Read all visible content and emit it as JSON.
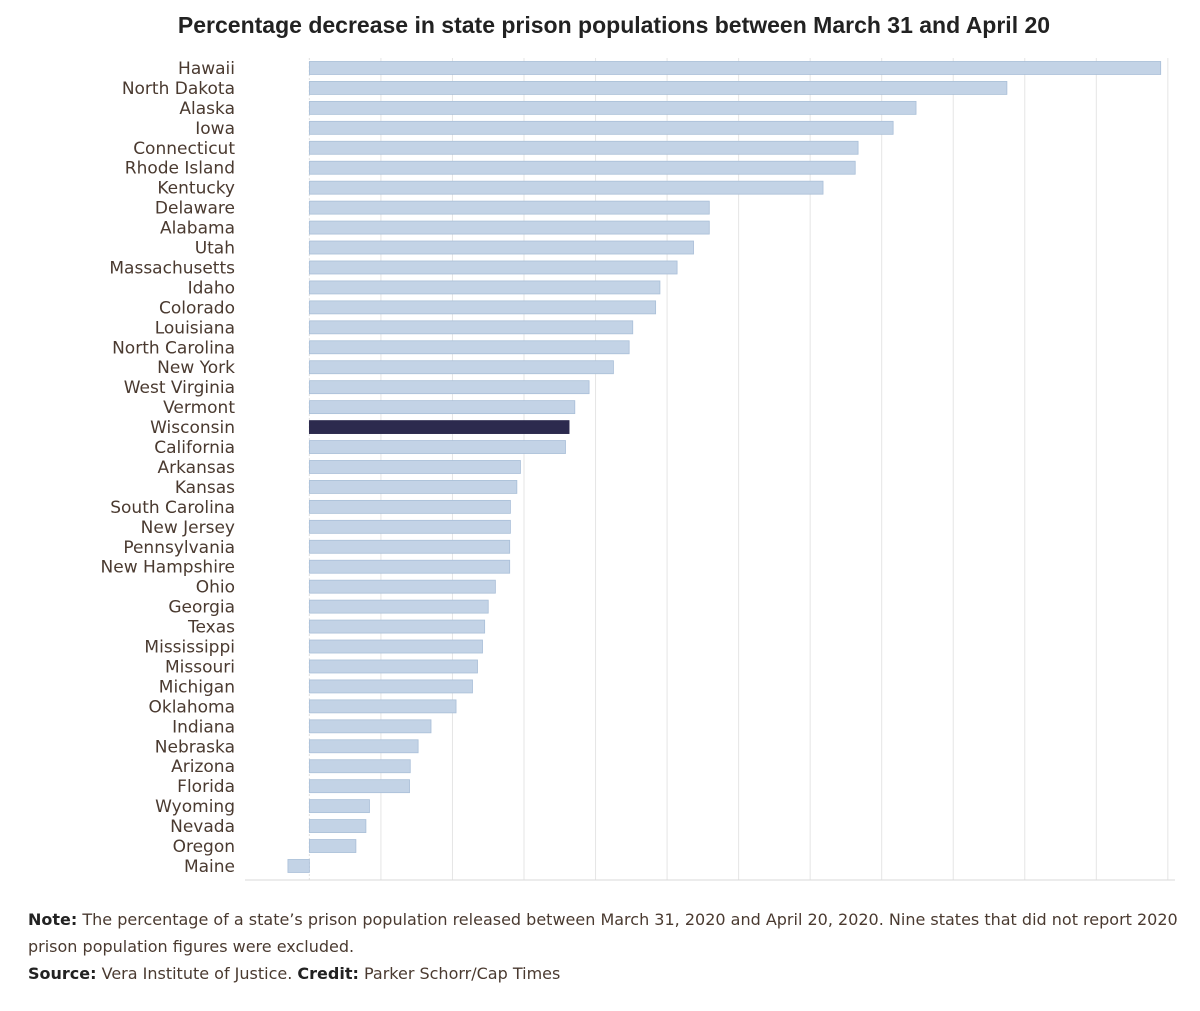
{
  "chart_data": {
    "type": "bar",
    "orientation": "horizontal",
    "title": "Percentage decrease in state prison populations between March 31 and April 20",
    "categories": [
      "Hawaii",
      "North Dakota",
      "Alaska",
      "Iowa",
      "Connecticut",
      "Rhode Island",
      "Kentucky",
      "Delaware",
      "Alabama",
      "Utah",
      "Massachusetts",
      "Idaho",
      "Colorado",
      "Louisiana",
      "North Carolina",
      "New York",
      "West Virginia",
      "Vermont",
      "Wisconsin",
      "California",
      "Arkansas",
      "Kansas",
      "South Carolina",
      "New Jersey",
      "Pennsylvania",
      "New Hampshire",
      "Ohio",
      "Georgia",
      "Texas",
      "Mississippi",
      "Missouri",
      "Michigan",
      "Oklahoma",
      "Indiana",
      "Nebraska",
      "Arizona",
      "Florida",
      "Wyoming",
      "Nevada",
      "Oregon",
      "Maine"
    ],
    "values": [
      11.9,
      9.75,
      8.48,
      8.16,
      7.67,
      7.63,
      7.18,
      5.59,
      5.59,
      5.37,
      5.14,
      4.9,
      4.84,
      4.52,
      4.47,
      4.25,
      3.91,
      3.71,
      3.63,
      3.58,
      2.95,
      2.9,
      2.81,
      2.81,
      2.8,
      2.8,
      2.6,
      2.5,
      2.45,
      2.42,
      2.35,
      2.28,
      2.05,
      1.7,
      1.52,
      1.41,
      1.4,
      0.84,
      0.79,
      0.65,
      -0.3
    ],
    "highlight": "Wisconsin",
    "xlim": [
      -0.9,
      12.1
    ],
    "grid_step": 1,
    "grid": true,
    "colors": {
      "bar": "#c3d3e6",
      "bar_border": "#a9bfd8",
      "highlight": "#2c2a4e",
      "grid": "#e5e5e5"
    }
  },
  "footnote": {
    "note_label": "Note:",
    "note_text": " The percentage of a state’s prison population released between March 31, 2020 and April 20, 2020. Nine states that did not report 2020 prison population figures were excluded.",
    "source_label": "Source:",
    "source_text": " Vera Institute of Justice.",
    "credit_label": "Credit:",
    "credit_text": " Parker Schorr/Cap Times"
  }
}
